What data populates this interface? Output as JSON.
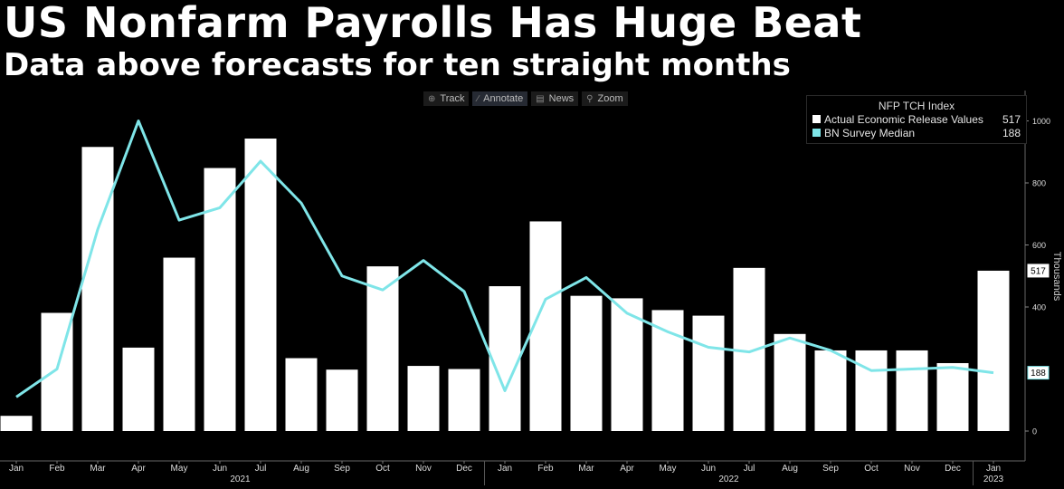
{
  "header": {
    "title": "US Nonfarm Payrolls Has Huge Beat",
    "subtitle": "Data above forecasts for ten straight months"
  },
  "toolbar": {
    "items": [
      {
        "label": "Track",
        "icon": "crosshair-icon"
      },
      {
        "label": "Annotate",
        "icon": "pencil-icon"
      },
      {
        "label": "News",
        "icon": "news-icon"
      },
      {
        "label": "Zoom",
        "icon": "magnifier-icon"
      }
    ]
  },
  "legend": {
    "title": "NFP TCH Index",
    "entries": [
      {
        "name": "Actual Economic Release Values",
        "value": "517",
        "color": "#ffffff"
      },
      {
        "name": "BN Survey Median",
        "value": "188",
        "color": "#7fe5e8"
      }
    ]
  },
  "chart_data": {
    "type": "bar",
    "categories": [
      "Jan",
      "Feb",
      "Mar",
      "Apr",
      "May",
      "Jun",
      "Jul",
      "Aug",
      "Sep",
      "Oct",
      "Nov",
      "Dec",
      "Jan",
      "Feb",
      "Mar",
      "Apr",
      "May",
      "Jun",
      "Jul",
      "Aug",
      "Sep",
      "Oct",
      "Nov",
      "Dec",
      "Jan"
    ],
    "year_labels": [
      {
        "label": "2021",
        "index": 5.5
      },
      {
        "label": "2022",
        "index": 17.5
      },
      {
        "label": "2023",
        "index": 24
      }
    ],
    "series": [
      {
        "name": "Actual Economic Release Values",
        "type": "bar",
        "color": "#ffffff",
        "values": [
          49,
          381,
          916,
          269,
          559,
          848,
          943,
          235,
          198,
          531,
          210,
          200,
          467,
          676,
          436,
          428,
          390,
          372,
          526,
          313,
          260,
          260,
          260,
          219,
          517
        ]
      },
      {
        "name": "BN Survey Median",
        "type": "line",
        "color": "#7fe5e8",
        "values": [
          110,
          200,
          650,
          1000,
          680,
          720,
          870,
          735,
          500,
          455,
          550,
          450,
          130,
          425,
          495,
          380,
          320,
          270,
          255,
          300,
          260,
          195,
          200,
          205,
          188
        ]
      }
    ],
    "ylabel": "Thousands",
    "ylim": [
      0,
      1100
    ],
    "yticks": [
      0,
      188,
      400,
      600,
      800,
      1000
    ],
    "last_value_labels": [
      {
        "value": "517",
        "color": "#ffffff"
      },
      {
        "value": "188",
        "color": "#7fe5e8"
      }
    ],
    "grid": false,
    "legend_position": "top-right"
  }
}
